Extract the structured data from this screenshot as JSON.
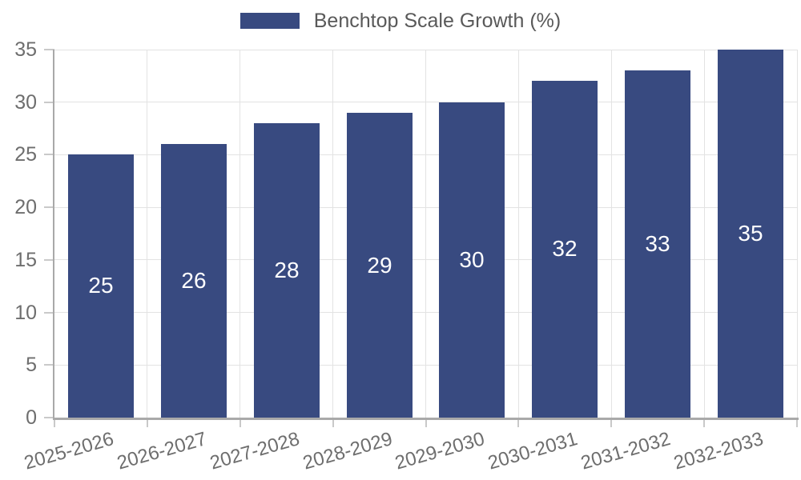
{
  "legend": {
    "label": "Benchtop Scale Growth (%)"
  },
  "chart_data": {
    "type": "bar",
    "title": "Benchtop Scale Growth (%)",
    "categories": [
      "2025-2026",
      "2026-2027",
      "2027-2028",
      "2028-2029",
      "2029-2030",
      "2030-2031",
      "2031-2032",
      "2032-2033"
    ],
    "values": [
      25,
      26,
      28,
      29,
      30,
      32,
      33,
      35
    ],
    "xlabel": "",
    "ylabel": "",
    "ylim": [
      0,
      35
    ],
    "yticks": [
      0,
      5,
      10,
      15,
      20,
      25,
      30,
      35
    ],
    "grid": true,
    "legend_position": "top-center",
    "value_label_position": "inside-middle"
  },
  "colors": {
    "bar": "#384A80",
    "grid": "#e3e3e3",
    "axis": "#a9a9a9",
    "tick": "#c9c9c9",
    "tick_label": "#6e6e6e",
    "legend_text": "#595959",
    "value_label": "#ffffff",
    "background": "#ffffff"
  }
}
